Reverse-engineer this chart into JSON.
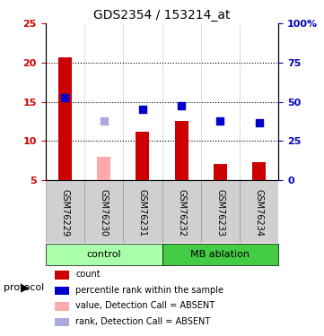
{
  "title": "GDS2354 / 153214_at",
  "samples": [
    "GSM76229",
    "GSM76230",
    "GSM76231",
    "GSM76232",
    "GSM76233",
    "GSM76234"
  ],
  "bar_values": [
    20.7,
    null,
    11.2,
    12.5,
    7.0,
    7.3
  ],
  "bar_absent_values": [
    null,
    8.0,
    null,
    null,
    null,
    null
  ],
  "bar_colors_present": "#cc0000",
  "bar_colors_absent": "#ffaaaa",
  "rank_values": [
    15.5,
    null,
    14.0,
    14.5,
    12.5,
    12.3
  ],
  "rank_absent_values": [
    null,
    12.5,
    null,
    null,
    null,
    null
  ],
  "rank_color_present": "#0000cc",
  "rank_color_absent": "#aaaadd",
  "ylim_left": [
    5,
    25
  ],
  "ylim_right": [
    0,
    100
  ],
  "yticks_left": [
    5,
    10,
    15,
    20,
    25
  ],
  "yticks_right": [
    0,
    25,
    50,
    75,
    100
  ],
  "ytick_labels_left": [
    "5",
    "10",
    "15",
    "20",
    "25"
  ],
  "ytick_labels_right": [
    "0",
    "25",
    "50",
    "75",
    "100%"
  ],
  "groups": [
    {
      "label": "control",
      "samples": [
        0,
        1,
        2
      ],
      "color": "#aaffaa"
    },
    {
      "label": "MB ablation",
      "samples": [
        3,
        4,
        5
      ],
      "color": "#44cc44"
    }
  ],
  "protocol_label": "protocol",
  "legend_items": [
    {
      "color": "#cc0000",
      "label": "count"
    },
    {
      "color": "#0000cc",
      "label": "percentile rank within the sample"
    },
    {
      "color": "#ffaaaa",
      "label": "value, Detection Call = ABSENT"
    },
    {
      "color": "#aaaadd",
      "label": "rank, Detection Call = ABSENT"
    }
  ],
  "grid_color": "#000000",
  "grid_linestyle": "dotted",
  "bar_width": 0.35,
  "rank_marker_size": 40,
  "xlabel_fontsize": 7,
  "ylabel_left_color": "#cc0000",
  "ylabel_right_color": "#0000bb"
}
